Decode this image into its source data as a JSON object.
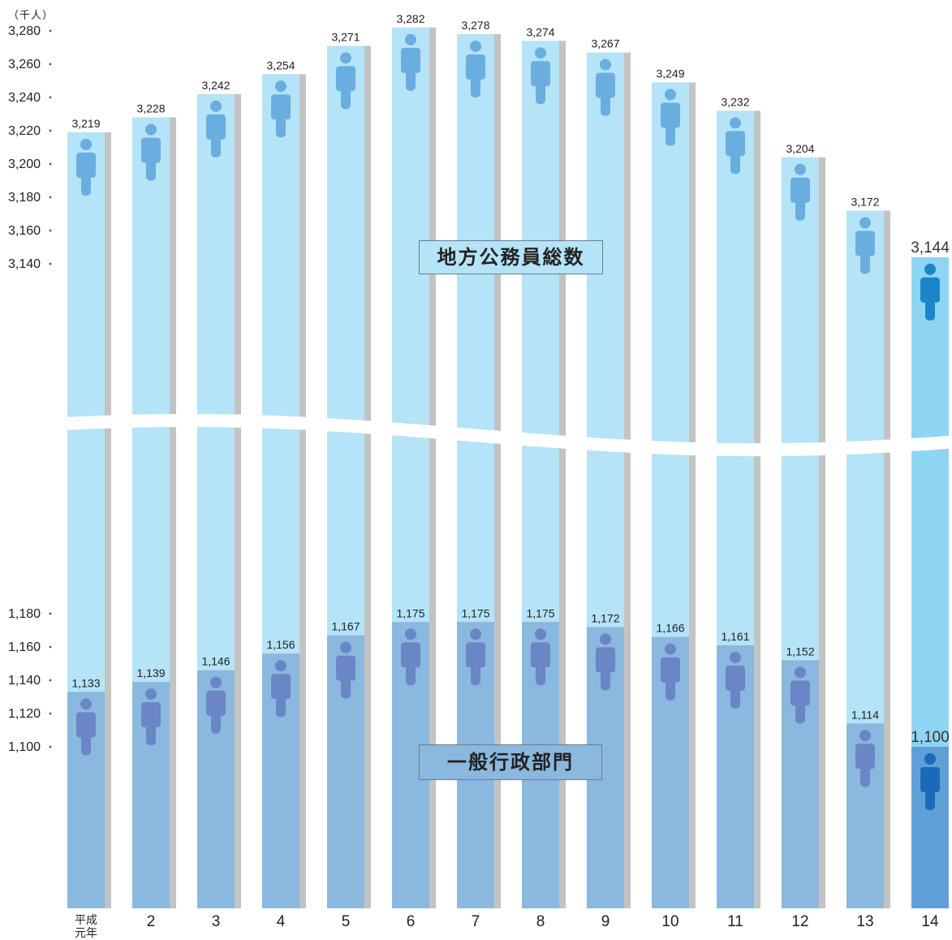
{
  "unit_label": "（千人）",
  "legend": {
    "total_label": "地方公務員総数",
    "general_label": "一般行政部門"
  },
  "colors": {
    "total_bar": "#b5e3f7",
    "general_bar": "#8ab8de",
    "bar_shadow": "#c3c3c3",
    "person_light": "#6aaee0",
    "person_dark": "#6a86c6",
    "highlight_total_bar": "#8ed5f3",
    "highlight_general_bar": "#5f9fd8",
    "highlight_person": "#1a86c9",
    "highlight_person_dark": "#1a6ab8"
  },
  "chart_data": {
    "type": "bar",
    "categories": [
      "平成\n元年",
      "2",
      "3",
      "4",
      "5",
      "6",
      "7",
      "8",
      "9",
      "10",
      "11",
      "12",
      "13",
      "14"
    ],
    "series": [
      {
        "name": "地方公務員総数",
        "values": [
          3219,
          3228,
          3242,
          3254,
          3271,
          3282,
          3278,
          3274,
          3267,
          3249,
          3232,
          3204,
          3172,
          3144
        ],
        "labels": [
          "3,219",
          "3,228",
          "3,242",
          "3,254",
          "3,271",
          "3,282",
          "3,278",
          "3,274",
          "3,267",
          "3,249",
          "3,232",
          "3,204",
          "3,172",
          "3,144"
        ]
      },
      {
        "name": "一般行政部門",
        "values": [
          1133,
          1139,
          1146,
          1156,
          1167,
          1175,
          1175,
          1175,
          1172,
          1166,
          1161,
          1152,
          1114,
          1100
        ],
        "labels": [
          "1,133",
          "1,139",
          "1,146",
          "1,156",
          "1,167",
          "1,175",
          "1,175",
          "1,175",
          "1,172",
          "1,166",
          "1,161",
          "1,152",
          "1,114",
          "1,100"
        ]
      }
    ],
    "upper_axis": {
      "ticks": [
        3140,
        3160,
        3180,
        3200,
        3220,
        3240,
        3260,
        3280
      ],
      "tick_labels": [
        "3,140",
        "3,160",
        "3,180",
        "3,200",
        "3,220",
        "3,240",
        "3,260",
        "3,280"
      ]
    },
    "lower_axis": {
      "ticks": [
        1100,
        1120,
        1140,
        1160,
        1180
      ],
      "tick_labels": [
        "1,100",
        "1,120",
        "1,140",
        "1,160",
        "1,180"
      ]
    },
    "axis_break": true,
    "highlight_index": 13
  }
}
